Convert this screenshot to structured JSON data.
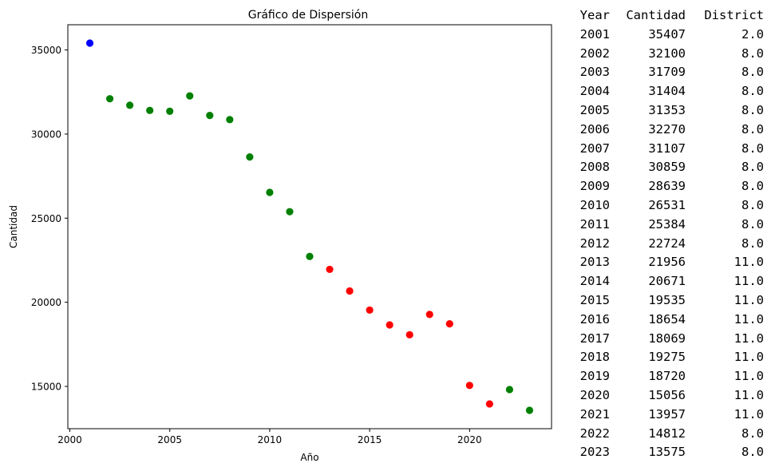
{
  "chart_data": {
    "type": "scatter",
    "title": "Gráfico de Dispersión",
    "xlabel": "Año",
    "ylabel": "Cantidad",
    "xlim": [
      1999.9,
      2024.1
    ],
    "ylim": [
      12484,
      36498
    ],
    "xticks": [
      2000,
      2005,
      2010,
      2015,
      2020
    ],
    "yticks": [
      15000,
      20000,
      25000,
      30000,
      35000
    ],
    "grid": false,
    "legend": "none",
    "district_colors": {
      "2.0": "#0000ff",
      "8.0": "#008000",
      "11.0": "#ff0000"
    },
    "points": [
      {
        "x": 2001,
        "y": 35407,
        "district": "2.0"
      },
      {
        "x": 2002,
        "y": 32100,
        "district": "8.0"
      },
      {
        "x": 2003,
        "y": 31709,
        "district": "8.0"
      },
      {
        "x": 2004,
        "y": 31404,
        "district": "8.0"
      },
      {
        "x": 2005,
        "y": 31353,
        "district": "8.0"
      },
      {
        "x": 2006,
        "y": 32270,
        "district": "8.0"
      },
      {
        "x": 2007,
        "y": 31107,
        "district": "8.0"
      },
      {
        "x": 2008,
        "y": 30859,
        "district": "8.0"
      },
      {
        "x": 2009,
        "y": 28639,
        "district": "8.0"
      },
      {
        "x": 2010,
        "y": 26531,
        "district": "8.0"
      },
      {
        "x": 2011,
        "y": 25384,
        "district": "8.0"
      },
      {
        "x": 2012,
        "y": 22724,
        "district": "8.0"
      },
      {
        "x": 2013,
        "y": 21956,
        "district": "11.0"
      },
      {
        "x": 2014,
        "y": 20671,
        "district": "11.0"
      },
      {
        "x": 2015,
        "y": 19535,
        "district": "11.0"
      },
      {
        "x": 2016,
        "y": 18654,
        "district": "11.0"
      },
      {
        "x": 2017,
        "y": 18069,
        "district": "11.0"
      },
      {
        "x": 2018,
        "y": 19275,
        "district": "11.0"
      },
      {
        "x": 2019,
        "y": 18720,
        "district": "11.0"
      },
      {
        "x": 2020,
        "y": 15056,
        "district": "11.0"
      },
      {
        "x": 2021,
        "y": 13957,
        "district": "11.0"
      },
      {
        "x": 2022,
        "y": 14812,
        "district": "8.0"
      },
      {
        "x": 2023,
        "y": 13575,
        "district": "8.0"
      }
    ]
  },
  "table": {
    "headers": [
      "Year",
      "Cantidad",
      "District"
    ],
    "rows": [
      [
        "2001",
        "35407",
        "2.0"
      ],
      [
        "2002",
        "32100",
        "8.0"
      ],
      [
        "2003",
        "31709",
        "8.0"
      ],
      [
        "2004",
        "31404",
        "8.0"
      ],
      [
        "2005",
        "31353",
        "8.0"
      ],
      [
        "2006",
        "32270",
        "8.0"
      ],
      [
        "2007",
        "31107",
        "8.0"
      ],
      [
        "2008",
        "30859",
        "8.0"
      ],
      [
        "2009",
        "28639",
        "8.0"
      ],
      [
        "2010",
        "26531",
        "8.0"
      ],
      [
        "2011",
        "25384",
        "8.0"
      ],
      [
        "2012",
        "22724",
        "8.0"
      ],
      [
        "2013",
        "21956",
        "11.0"
      ],
      [
        "2014",
        "20671",
        "11.0"
      ],
      [
        "2015",
        "19535",
        "11.0"
      ],
      [
        "2016",
        "18654",
        "11.0"
      ],
      [
        "2017",
        "18069",
        "11.0"
      ],
      [
        "2018",
        "19275",
        "11.0"
      ],
      [
        "2019",
        "18720",
        "11.0"
      ],
      [
        "2020",
        "15056",
        "11.0"
      ],
      [
        "2021",
        "13957",
        "11.0"
      ],
      [
        "2022",
        "14812",
        "8.0"
      ],
      [
        "2023",
        "13575",
        "8.0"
      ]
    ]
  }
}
